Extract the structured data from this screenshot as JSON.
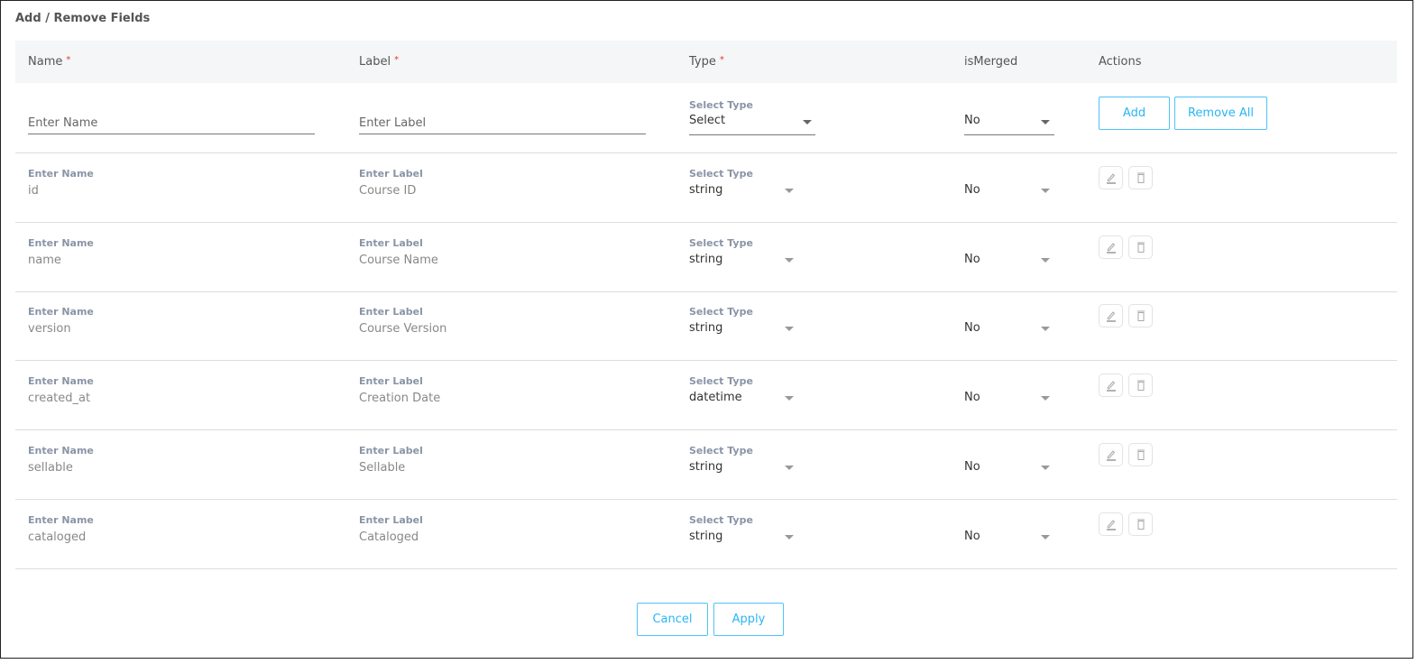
{
  "title": "Add / Remove Fields",
  "headers": {
    "name": "Name",
    "label": "Label",
    "type": "Type",
    "is_merged": "isMerged",
    "actions": "Actions",
    "required_mark": "*"
  },
  "new_row": {
    "name_placeholder": "Enter Name",
    "label_placeholder": "Enter Label",
    "type_label": "Select Type",
    "type_value": "Select",
    "is_merged_value": "No",
    "add_label": "Add",
    "remove_all_label": "Remove All"
  },
  "field_labels": {
    "name": "Enter Name",
    "label": "Enter Label",
    "type": "Select Type"
  },
  "rows": [
    {
      "name": "id",
      "label": "Course ID",
      "type": "string",
      "is_merged": "No"
    },
    {
      "name": "name",
      "label": "Course Name",
      "type": "string",
      "is_merged": "No"
    },
    {
      "name": "version",
      "label": "Course Version",
      "type": "string",
      "is_merged": "No"
    },
    {
      "name": "created_at",
      "label": "Creation Date",
      "type": "datetime",
      "is_merged": "No"
    },
    {
      "name": "sellable",
      "label": "Sellable",
      "type": "string",
      "is_merged": "No"
    },
    {
      "name": "cataloged",
      "label": "Cataloged",
      "type": "string",
      "is_merged": "No"
    }
  ],
  "footer": {
    "cancel_label": "Cancel",
    "apply_label": "Apply"
  },
  "icons": {
    "edit": "pencil-icon",
    "delete": "trash-icon"
  },
  "colors": {
    "accent": "#29b6f6",
    "required": "#e53935",
    "header_bg": "#f4f6f7"
  }
}
